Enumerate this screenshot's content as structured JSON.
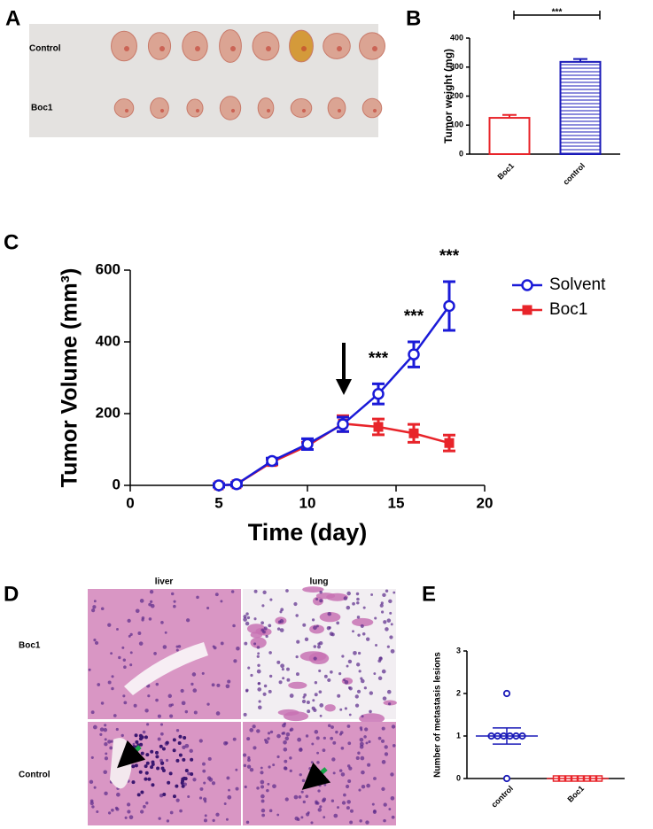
{
  "panel_labels": [
    "A",
    "B",
    "C",
    "D",
    "E"
  ],
  "photo_a": {
    "row_labels": [
      "Control",
      "Boc1"
    ]
  },
  "histology_d": {
    "column_labels": [
      "liver",
      "lung"
    ],
    "row_labels": [
      "Boc1",
      "Control"
    ]
  },
  "chart_data": [
    {
      "type": "bar",
      "ylabel": "Tumor weight (mg)",
      "categories": [
        "Boc1",
        "control"
      ],
      "values": [
        125,
        318
      ],
      "errors": [
        10,
        10
      ],
      "colors": [
        "#e8242a",
        "#1a1ab8"
      ],
      "hatches": [
        "none",
        "horizontal"
      ],
      "ylim": [
        0,
        400
      ],
      "yticks": [
        0,
        100,
        200,
        300,
        400
      ],
      "annotation": "***"
    },
    {
      "type": "line",
      "xlabel": "Time (day)",
      "ylabel": "Tumor Volume (mm³)",
      "x": [
        5,
        6,
        8,
        10,
        12,
        14,
        16,
        18
      ],
      "series": [
        {
          "name": "Solvent",
          "color": "#1a1ad8",
          "marker": "open-circle",
          "values": [
            0,
            3,
            68,
            115,
            170,
            255,
            365,
            500
          ],
          "errors": [
            5,
            5,
            8,
            15,
            20,
            28,
            35,
            68
          ]
        },
        {
          "name": "Boc1",
          "color": "#e8242a",
          "marker": "filled-square",
          "values": [
            0,
            3,
            65,
            110,
            172,
            163,
            145,
            118
          ],
          "errors": [
            5,
            5,
            8,
            10,
            22,
            22,
            25,
            22
          ]
        }
      ],
      "xlim": [
        0,
        20
      ],
      "ylim": [
        0,
        600
      ],
      "xticks": [
        0,
        5,
        10,
        15,
        20
      ],
      "yticks": [
        0,
        200,
        400,
        600
      ],
      "annotations": [
        {
          "x": 14,
          "text": "***"
        },
        {
          "x": 16,
          "text": "***"
        },
        {
          "x": 18,
          "text": "***"
        }
      ]
    },
    {
      "type": "scatter",
      "ylabel": "Number of metastasis lesions",
      "categories": [
        "control",
        "Boc1"
      ],
      "values": [
        [
          0,
          1,
          1,
          1,
          1,
          1,
          1,
          2
        ],
        [
          0,
          0,
          0,
          0,
          0,
          0,
          0,
          0
        ]
      ],
      "means": [
        1,
        0
      ],
      "sems": [
        0.19,
        0
      ],
      "colors": [
        "#1a1ab8",
        "#e8242a"
      ],
      "markers": [
        "circle",
        "square"
      ],
      "ylim": [
        0,
        3
      ],
      "yticks": [
        0,
        1,
        2,
        3
      ]
    }
  ]
}
